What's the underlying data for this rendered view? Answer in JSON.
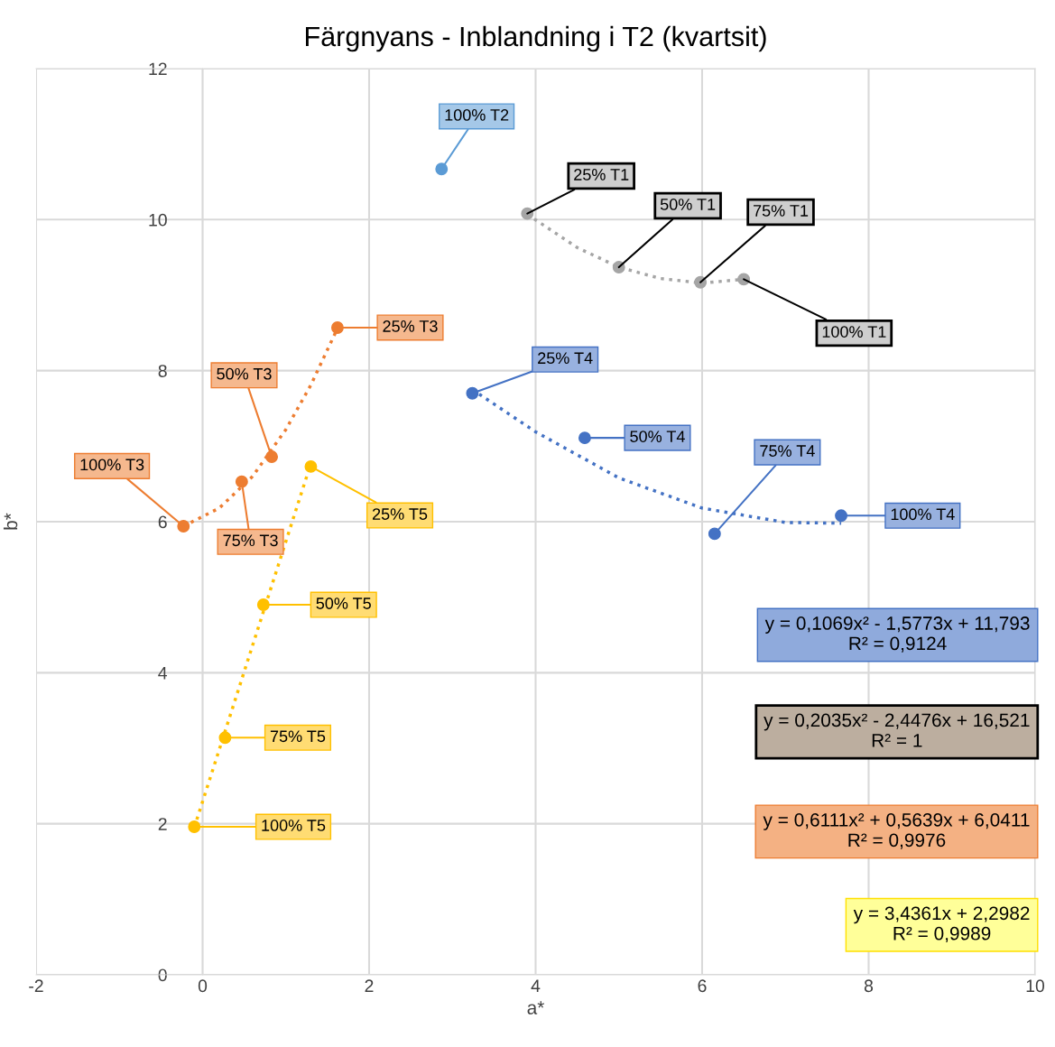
{
  "chart_data": {
    "type": "scatter",
    "title": "Färgnyans - Inblandning i T2 (kvartsit)",
    "xlabel": "a*",
    "ylabel": "b*",
    "xlim": [
      -2,
      10
    ],
    "xticks": [
      -2,
      0,
      2,
      4,
      6,
      8,
      10
    ],
    "ylim": [
      0,
      12
    ],
    "yticks": [
      0,
      2,
      4,
      6,
      8,
      10,
      12
    ],
    "grid": true,
    "legend": false,
    "marker": "circle",
    "series": [
      {
        "color": "#5b9bd5",
        "x": [
          2.87
        ],
        "values": [
          10.67
        ],
        "value_labels": [
          "100% T2"
        ]
      },
      {
        "color": "#a5a5a5",
        "x": [
          3.9,
          5.0,
          5.98,
          6.5
        ],
        "values": [
          10.08,
          9.37,
          9.17,
          9.21
        ],
        "value_labels": [
          "25% T1",
          "50% T1",
          "75% T1",
          "100% T1"
        ]
      },
      {
        "color": "#ed7d31",
        "x": [
          1.62,
          0.83,
          0.47,
          -0.23
        ],
        "values": [
          8.57,
          6.86,
          6.53,
          5.94
        ],
        "value_labels": [
          "25% T3",
          "50% T3",
          "75% T3",
          "100% T3"
        ]
      },
      {
        "color": "#4472c4",
        "x": [
          3.24,
          4.59,
          6.15,
          7.67
        ],
        "values": [
          7.7,
          7.11,
          5.84,
          6.08
        ],
        "value_labels": [
          "25% T4",
          "50% T4",
          "75% T4",
          "100% T4"
        ]
      },
      {
        "color": "#ffc000",
        "x": [
          1.3,
          0.73,
          0.27,
          -0.1
        ],
        "values": [
          6.73,
          4.9,
          3.14,
          1.96
        ],
        "value_labels": [
          "25% T5",
          "50% T5",
          "75% T5",
          "100% T5"
        ]
      },
      {
        "type": "line",
        "line_style": "dotted",
        "marker": "none",
        "color": "#a5a5a5",
        "x": [
          3.9,
          4.5,
          5.0,
          5.5,
          6.0,
          6.5
        ],
        "values": [
          10.07,
          9.63,
          9.37,
          9.22,
          9.16,
          9.21
        ]
      },
      {
        "type": "line",
        "line_style": "dotted",
        "marker": "none",
        "color": "#ed7d31",
        "x": [
          -0.23,
          0.2,
          0.6,
          1.0,
          1.3,
          1.62
        ],
        "values": [
          5.94,
          6.18,
          6.6,
          7.22,
          7.81,
          8.56
        ]
      },
      {
        "type": "line",
        "line_style": "dotted",
        "marker": "none",
        "color": "#4472c4",
        "x": [
          3.24,
          4.0,
          5.0,
          6.0,
          7.0,
          7.67
        ],
        "values": [
          7.75,
          7.19,
          6.58,
          6.18,
          5.99,
          5.98
        ]
      },
      {
        "type": "line",
        "line_style": "dotted",
        "marker": "none",
        "color": "#ffc000",
        "x": [
          -0.1,
          1.3
        ],
        "values": [
          1.95,
          6.77
        ]
      }
    ],
    "annotations": [
      "y = 0,1069x² - 1,5773x + 11,793\nR² = 0,9124",
      "y = 0,2035x² - 2,4476x + 16,521\nR² = 1",
      "y = 0,6111x² + 0,5639x + 6,0411\nR² = 0,9976",
      "y = 3,4361x + 2,2982\nR² = 0,9989"
    ]
  }
}
